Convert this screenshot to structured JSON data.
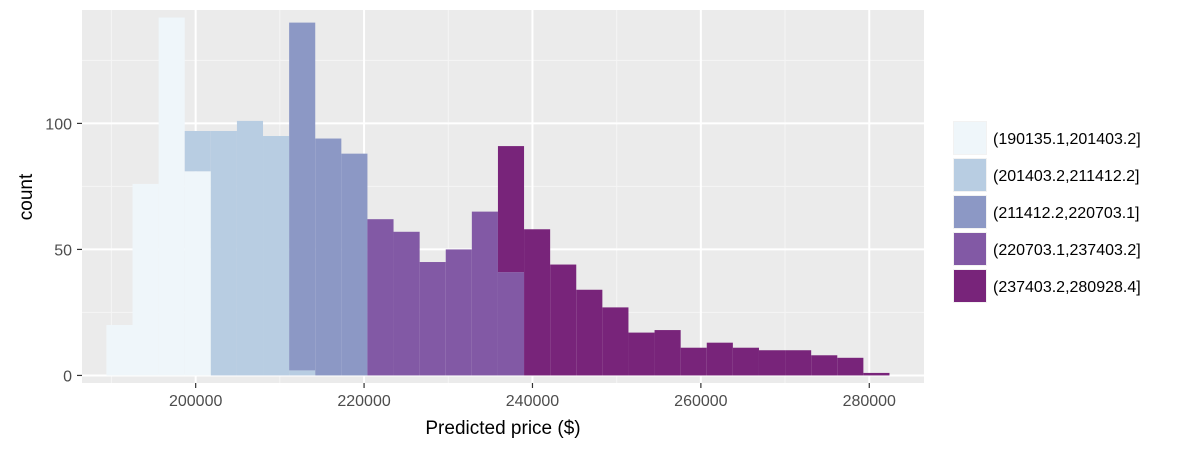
{
  "chart_data": {
    "type": "bar",
    "xlabel": "Predicted price ($)",
    "ylabel": "count",
    "xlim": [
      186500,
      286500
    ],
    "ylim": [
      -3,
      145
    ],
    "bin_width": 3100,
    "x_ticks": [
      200000,
      220000,
      240000,
      260000,
      280000
    ],
    "x_tick_labels": [
      "200000",
      "220000",
      "240000",
      "260000",
      "280000"
    ],
    "y_ticks": [
      0,
      50,
      100
    ],
    "y_tick_labels": [
      "0",
      "50",
      "100"
    ],
    "grid": true,
    "legend_position": "right",
    "legend": [
      {
        "label": "(190135.1,201403.2]",
        "color": "#EFF6FA"
      },
      {
        "label": "(201403.2,211412.2]",
        "color": "#B8CDE2"
      },
      {
        "label": "(211412.2,220703.1]",
        "color": "#8C98C5"
      },
      {
        "label": "(220703.1,237403.2]",
        "color": "#8259A5"
      },
      {
        "label": "(237403.2,280928.4]",
        "color": "#78247A"
      }
    ],
    "series": [
      {
        "name": "(190135.1,201403.2]",
        "bars": [
          {
            "x0": 189400,
            "x1": 192500,
            "y0": 0,
            "y1": 20
          },
          {
            "x0": 192500,
            "x1": 195600,
            "y0": 0,
            "y1": 76
          },
          {
            "x0": 195600,
            "x1": 198700,
            "y0": 0,
            "y1": 142
          },
          {
            "x0": 198700,
            "x1": 201800,
            "y0": 0,
            "y1": 81
          }
        ]
      },
      {
        "name": "(201403.2,211412.2]",
        "bars": [
          {
            "x0": 198700,
            "x1": 201800,
            "y0": 81,
            "y1": 97
          },
          {
            "x0": 201800,
            "x1": 204900,
            "y0": 0,
            "y1": 97
          },
          {
            "x0": 204900,
            "x1": 208000,
            "y0": 0,
            "y1": 101
          },
          {
            "x0": 208000,
            "x1": 211100,
            "y0": 0,
            "y1": 95
          },
          {
            "x0": 211100,
            "x1": 214200,
            "y0": 0,
            "y1": 2
          }
        ]
      },
      {
        "name": "(211412.2,220703.1]",
        "bars": [
          {
            "x0": 211100,
            "x1": 214200,
            "y0": 2,
            "y1": 140
          },
          {
            "x0": 214200,
            "x1": 217300,
            "y0": 0,
            "y1": 94
          },
          {
            "x0": 217300,
            "x1": 220400,
            "y0": 0,
            "y1": 88
          }
        ]
      },
      {
        "name": "(220703.1,237403.2]",
        "bars": [
          {
            "x0": 220400,
            "x1": 223500,
            "y0": 0,
            "y1": 62
          },
          {
            "x0": 223500,
            "x1": 226600,
            "y0": 0,
            "y1": 57
          },
          {
            "x0": 226600,
            "x1": 229700,
            "y0": 0,
            "y1": 45
          },
          {
            "x0": 229700,
            "x1": 232800,
            "y0": 0,
            "y1": 50
          },
          {
            "x0": 232800,
            "x1": 235900,
            "y0": 0,
            "y1": 65
          },
          {
            "x0": 235900,
            "x1": 239000,
            "y0": 0,
            "y1": 41
          }
        ]
      },
      {
        "name": "(237403.2,280928.4]",
        "bars": [
          {
            "x0": 235900,
            "x1": 239000,
            "y0": 41,
            "y1": 91
          },
          {
            "x0": 239000,
            "x1": 242100,
            "y0": 0,
            "y1": 58
          },
          {
            "x0": 242100,
            "x1": 245200,
            "y0": 0,
            "y1": 44
          },
          {
            "x0": 245200,
            "x1": 248300,
            "y0": 0,
            "y1": 34
          },
          {
            "x0": 248300,
            "x1": 251400,
            "y0": 0,
            "y1": 27
          },
          {
            "x0": 251400,
            "x1": 254500,
            "y0": 0,
            "y1": 17
          },
          {
            "x0": 254500,
            "x1": 257600,
            "y0": 0,
            "y1": 18
          },
          {
            "x0": 257600,
            "x1": 260700,
            "y0": 0,
            "y1": 11
          },
          {
            "x0": 260700,
            "x1": 263800,
            "y0": 0,
            "y1": 13
          },
          {
            "x0": 263800,
            "x1": 266900,
            "y0": 0,
            "y1": 11
          },
          {
            "x0": 266900,
            "x1": 270000,
            "y0": 0,
            "y1": 10
          },
          {
            "x0": 270000,
            "x1": 273100,
            "y0": 0,
            "y1": 10
          },
          {
            "x0": 273100,
            "x1": 276200,
            "y0": 0,
            "y1": 8
          },
          {
            "x0": 276200,
            "x1": 279300,
            "y0": 0,
            "y1": 7
          },
          {
            "x0": 279300,
            "x1": 282400,
            "y0": 0,
            "y1": 1
          }
        ]
      }
    ]
  }
}
